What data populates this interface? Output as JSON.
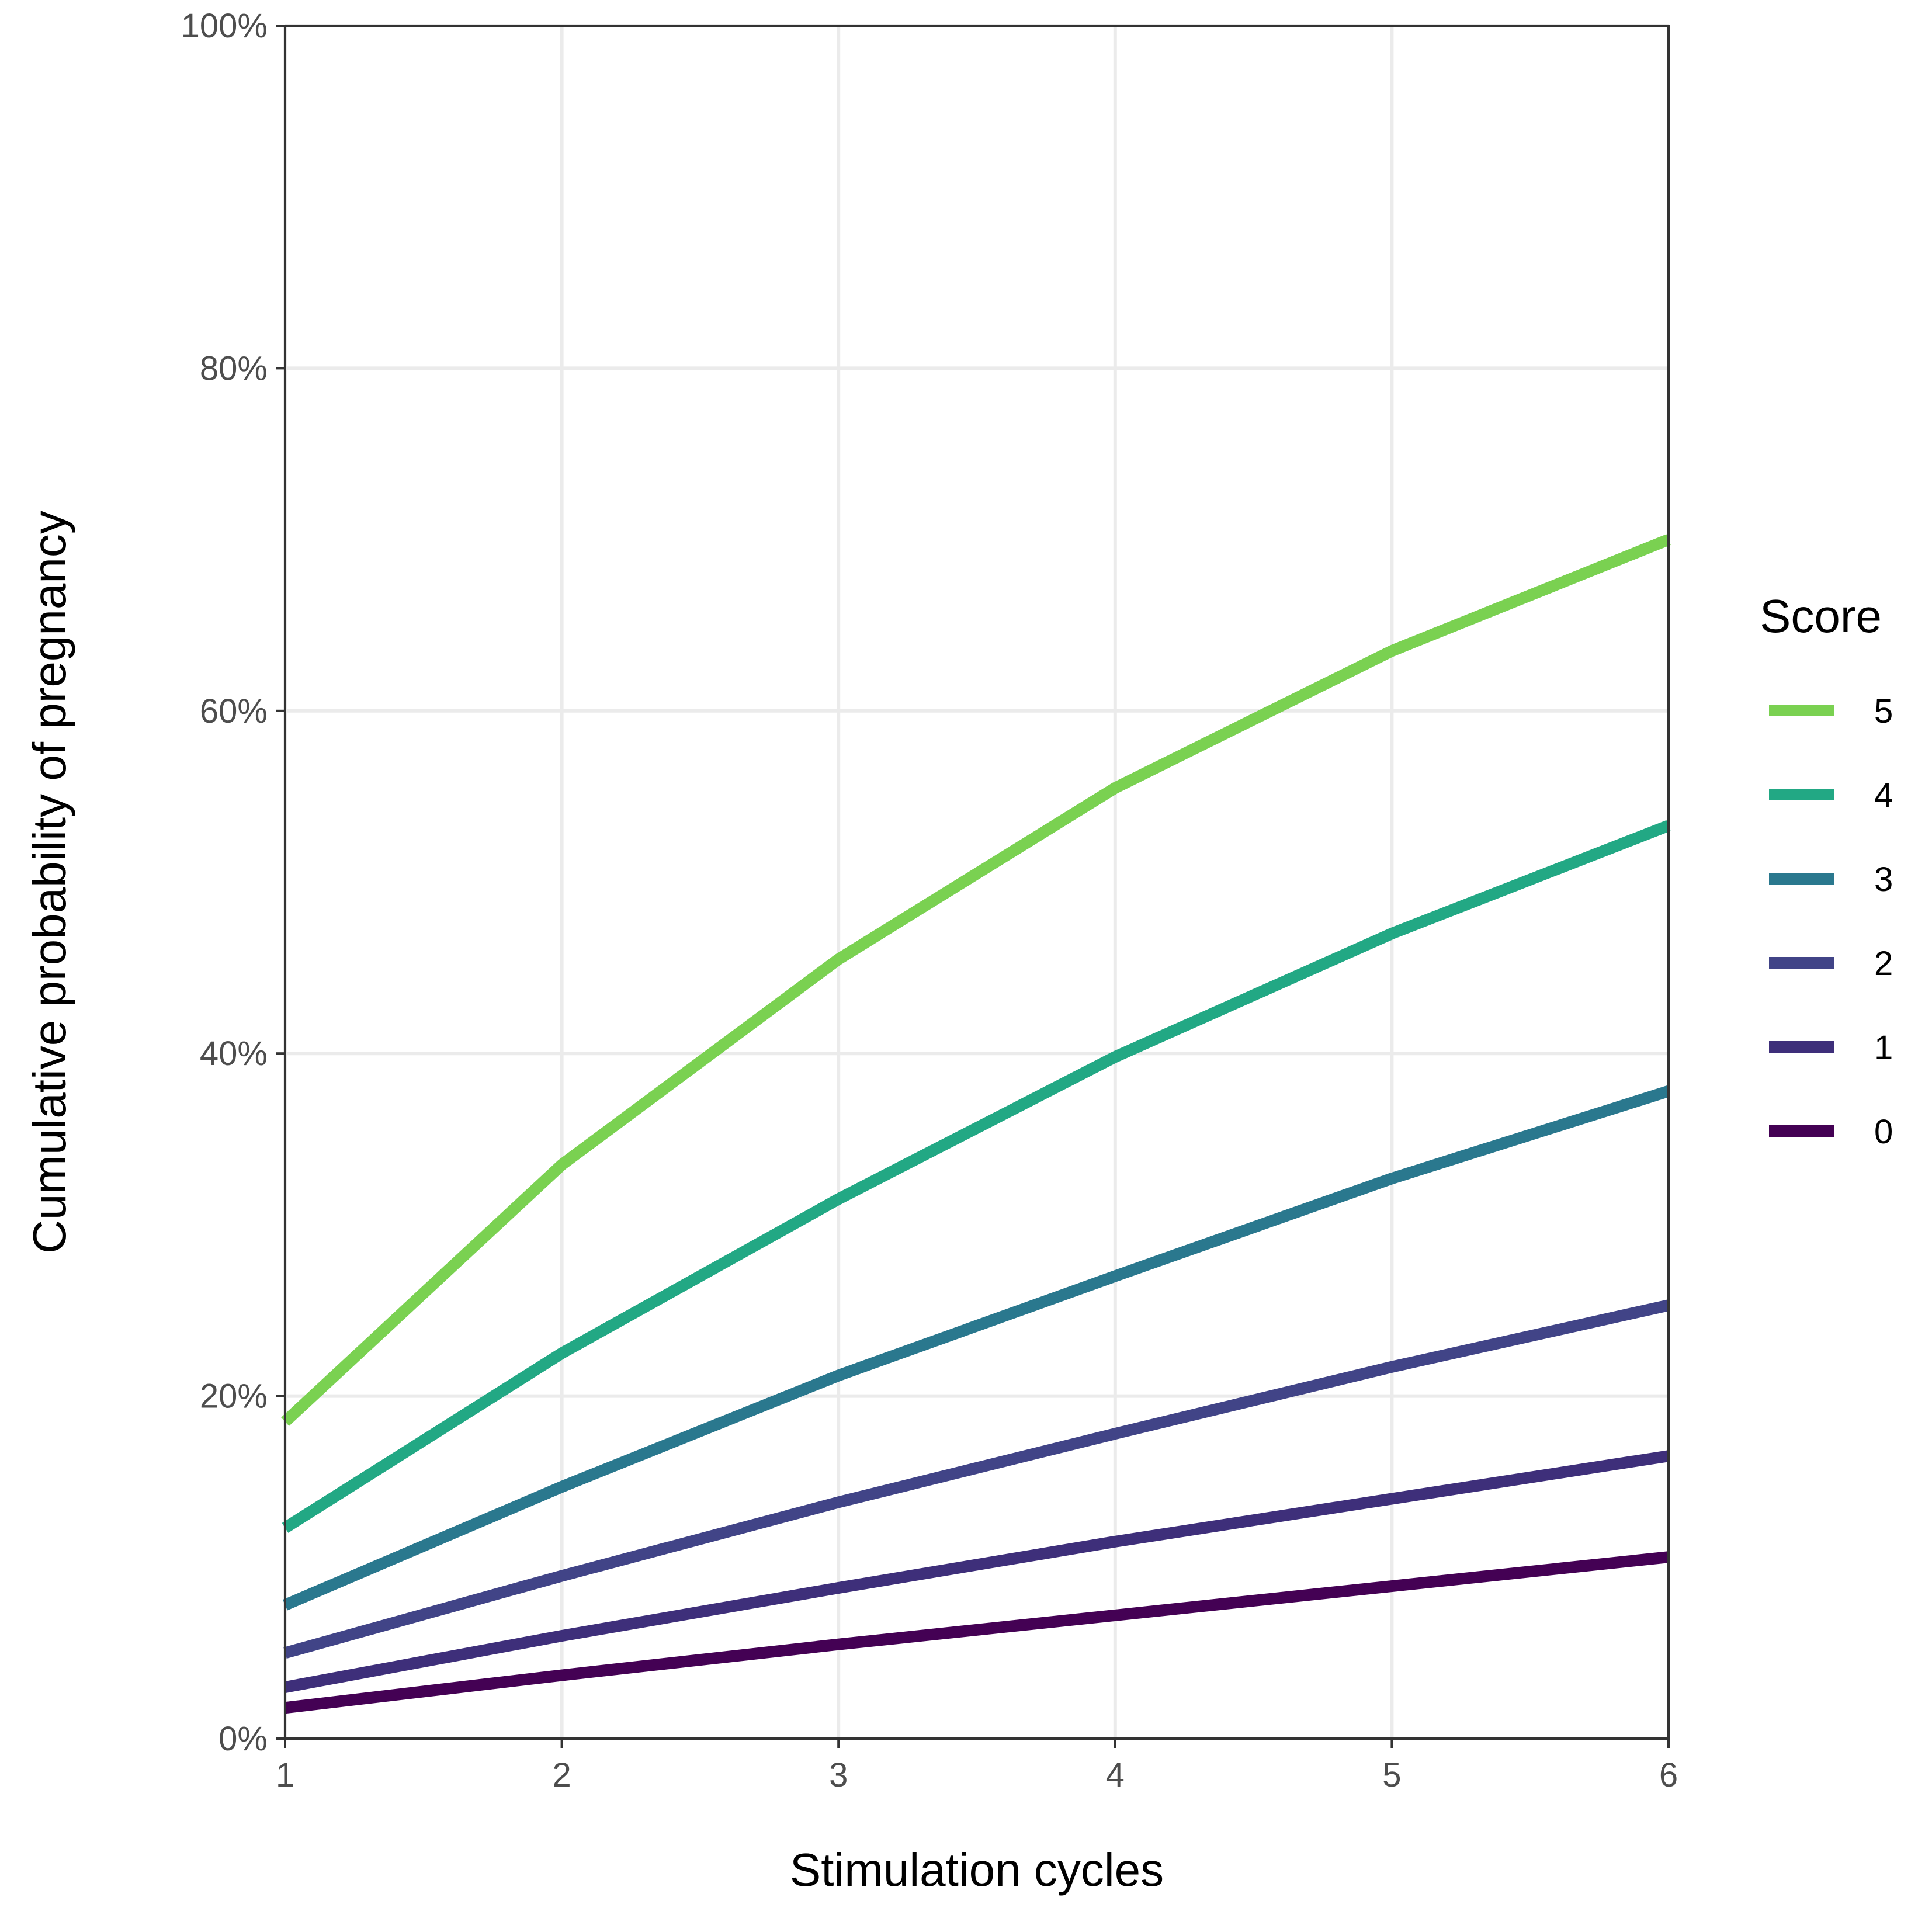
{
  "chart_data": {
    "type": "line",
    "xlabel": "Stimulation cycles",
    "ylabel": "Cumulative probability of pregnancy",
    "x": [
      1,
      2,
      3,
      4,
      5,
      6
    ],
    "xlim": [
      1,
      6
    ],
    "ylim": [
      0,
      100
    ],
    "x_ticks": [
      "1",
      "2",
      "3",
      "4",
      "5",
      "6"
    ],
    "y_ticks": [
      "0%",
      "20%",
      "40%",
      "60%",
      "80%",
      "100%"
    ],
    "y_tick_values": [
      0,
      20,
      40,
      60,
      80,
      100
    ],
    "grid": true,
    "legend": {
      "title": "Score",
      "placement": "right"
    },
    "series": [
      {
        "name": "5",
        "color": "#7AD151",
        "values": [
          18.5,
          33.5,
          45.5,
          55.5,
          63.5,
          70.0
        ]
      },
      {
        "name": "4",
        "color": "#22A884",
        "values": [
          12.3,
          22.5,
          31.5,
          39.8,
          47.0,
          53.3
        ]
      },
      {
        "name": "3",
        "color": "#2A788E",
        "values": [
          7.8,
          14.7,
          21.2,
          27.0,
          32.7,
          37.8
        ]
      },
      {
        "name": "2",
        "color": "#414487",
        "values": [
          5.0,
          9.5,
          13.8,
          17.8,
          21.7,
          25.3
        ]
      },
      {
        "name": "1",
        "color": "#3E2F7A",
        "values": [
          3.0,
          6.0,
          8.8,
          11.5,
          14.0,
          16.5
        ]
      },
      {
        "name": "0",
        "color": "#440154",
        "values": [
          1.8,
          3.7,
          5.5,
          7.2,
          8.9,
          10.6
        ]
      }
    ]
  }
}
